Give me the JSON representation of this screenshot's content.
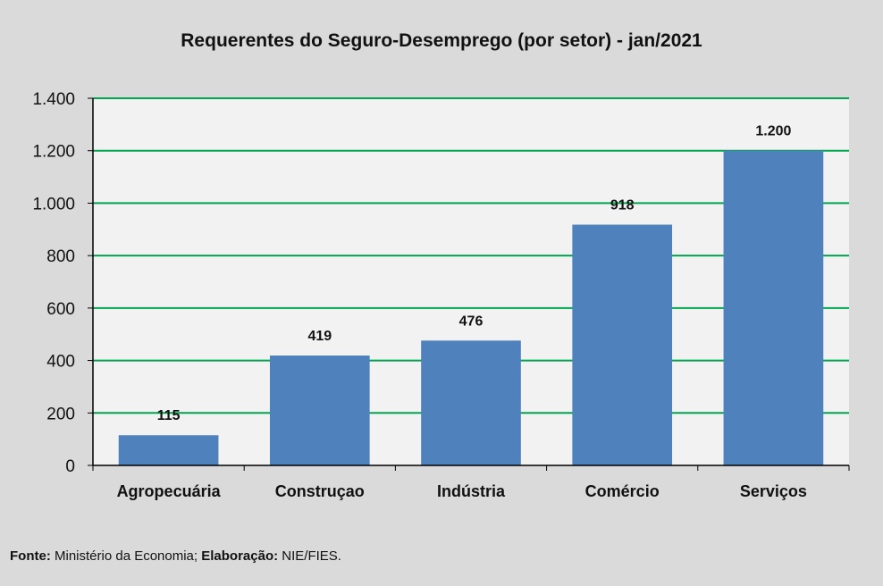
{
  "chart_data": {
    "type": "bar",
    "title": "Requerentes do Seguro-Desemprego (por setor) - jan/2021",
    "categories": [
      "Agropecuária",
      "Construçao",
      "Indústria",
      "Comércio",
      "Serviços"
    ],
    "values": [
      115,
      419,
      476,
      918,
      1200
    ],
    "value_labels": [
      "115",
      "419",
      "476",
      "918",
      "1.200"
    ],
    "ylim": [
      0,
      1400
    ],
    "yticks": [
      0,
      200,
      400,
      600,
      800,
      1000,
      1200,
      1400
    ],
    "ytick_labels": [
      "0",
      "200",
      "400",
      "600",
      "800",
      "1.000",
      "1.200",
      "1.400"
    ],
    "xlabel": "",
    "ylabel": "",
    "grid": true,
    "legend": "none"
  },
  "footer": {
    "source_label": "Fonte:",
    "source_text": " Ministério da Economia; ",
    "elab_label": "Elaboração:",
    "elab_text": " NIE/FIES."
  },
  "colors": {
    "bar": "#4f81bd",
    "grid": "#00a550",
    "plot_bg": "#f2f2f2",
    "page_bg": "#dadada"
  }
}
